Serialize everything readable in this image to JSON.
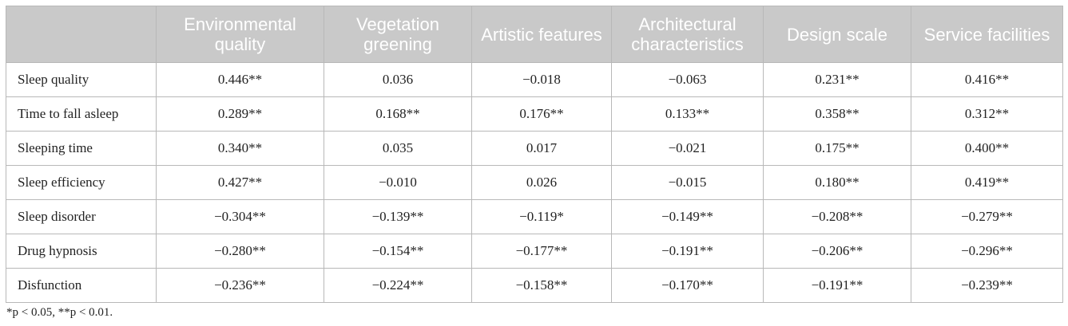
{
  "table": {
    "header": [
      "Environmental quality",
      "Vegetation greening",
      "Artistic features",
      "Architectural characteristics",
      "Design scale",
      "Service facilities"
    ],
    "rows": [
      [
        "Sleep quality",
        "0.446**",
        "0.036",
        "−0.018",
        "−0.063",
        "0.231**",
        "0.416**"
      ],
      [
        "Time to fall asleep",
        "0.289**",
        "0.168**",
        "0.176**",
        "0.133**",
        "0.358**",
        "0.312**"
      ],
      [
        "Sleeping time",
        "0.340**",
        "0.035",
        "0.017",
        "−0.021",
        "0.175**",
        "0.400**"
      ],
      [
        "Sleep efficiency",
        "0.427**",
        "−0.010",
        "0.026",
        "−0.015",
        "0.180**",
        "0.419**"
      ],
      [
        "Sleep disorder",
        "−0.304**",
        "−0.139**",
        "−0.119*",
        "−0.149**",
        "−0.208**",
        "−0.279**"
      ],
      [
        "Drug hypnosis",
        "−0.280**",
        "−0.154**",
        "−0.177**",
        "−0.191**",
        "−0.206**",
        "−0.296**"
      ],
      [
        "Disfunction",
        "−0.236**",
        "−0.224**",
        "−0.158**",
        "−0.170**",
        "−0.191**",
        "−0.239**"
      ]
    ]
  },
  "footnote": "*p < 0.05, **p < 0.01."
}
